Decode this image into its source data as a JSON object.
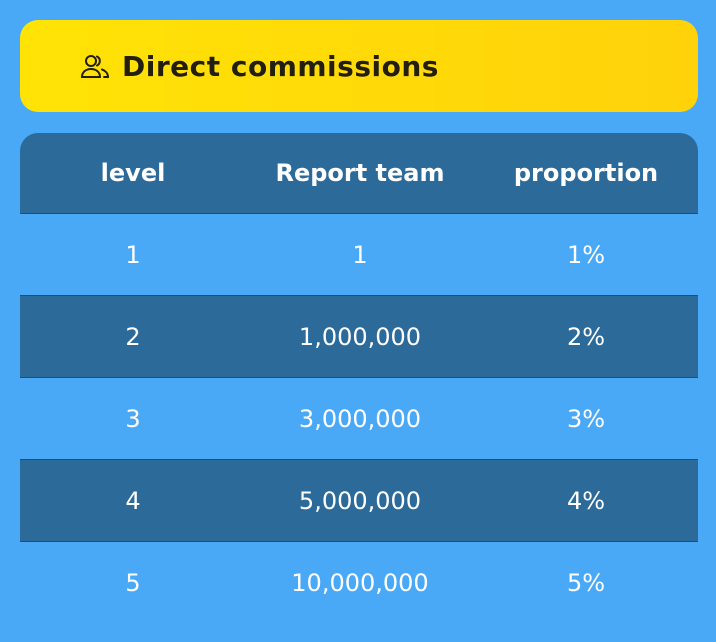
{
  "header": {
    "title": "Direct commissions"
  },
  "table": {
    "columns": [
      "level",
      "Report team",
      "proportion"
    ],
    "rows": [
      [
        "1",
        "1",
        "1%"
      ],
      [
        "2",
        "1,000,000",
        "2%"
      ],
      [
        "3",
        "3,000,000",
        "3%"
      ],
      [
        "4",
        "5,000,000",
        "4%"
      ],
      [
        "5",
        "10,000,000",
        "5%"
      ]
    ]
  }
}
